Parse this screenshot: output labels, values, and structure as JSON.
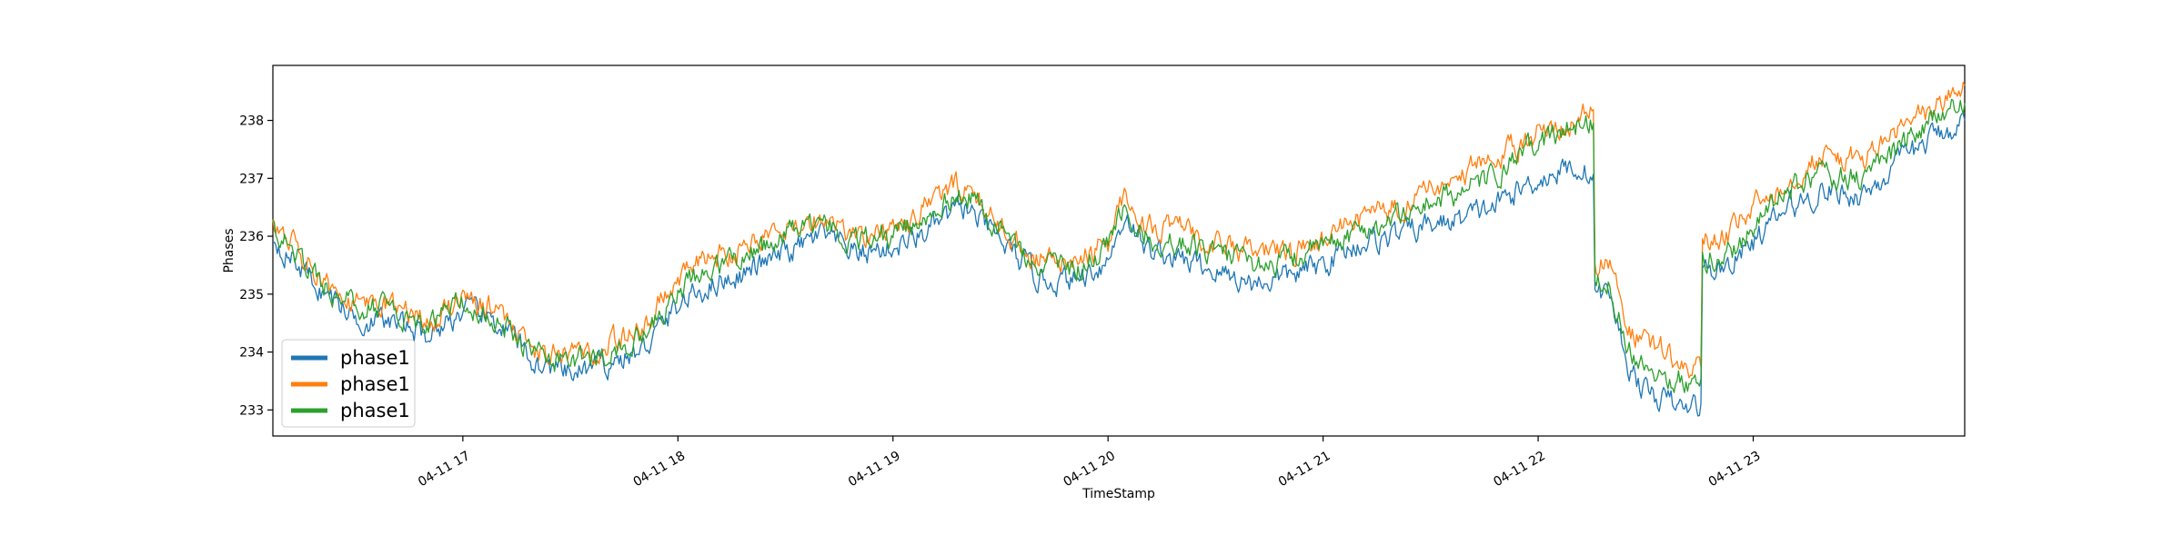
{
  "chart_data": {
    "type": "line",
    "title": "",
    "xlabel": "TimeStamp",
    "ylabel": "Phases",
    "x_tick_labels": [
      "04-11 17",
      "04-11 18",
      "04-11 19",
      "04-11 20",
      "04-11 21",
      "04-11 22",
      "04-11 23"
    ],
    "y_tick_labels": [
      "233",
      "234",
      "235",
      "236",
      "237",
      "238"
    ],
    "xlim": [
      "04-11 16:07",
      "04-11 23:59"
    ],
    "ylim": [
      232.55,
      238.95
    ],
    "grid": false,
    "legend_position": "lower-left",
    "x": [
      "04-11 16:07",
      "04-11 16:20",
      "04-11 16:30",
      "04-11 16:40",
      "04-11 16:50",
      "04-11 17:00",
      "04-11 17:10",
      "04-11 17:20",
      "04-11 17:30",
      "04-11 17:40",
      "04-11 17:50",
      "04-11 18:00",
      "04-11 18:10",
      "04-11 18:20",
      "04-11 18:30",
      "04-11 18:40",
      "04-11 18:50",
      "04-11 19:00",
      "04-11 19:10",
      "04-11 19:20",
      "04-11 19:30",
      "04-11 19:40",
      "04-11 19:50",
      "04-11 20:00",
      "04-11 20:05",
      "04-11 20:10",
      "04-11 20:20",
      "04-11 20:30",
      "04-11 20:40",
      "04-11 20:50",
      "04-11 21:00",
      "04-11 21:10",
      "04-11 21:20",
      "04-11 21:30",
      "04-11 21:40",
      "04-11 21:50",
      "04-11 22:00",
      "04-11 22:10",
      "04-11 22:15",
      "04-11 22:20",
      "04-11 22:25",
      "04-11 22:30",
      "04-11 22:35",
      "04-11 22:40",
      "04-11 22:45",
      "04-11 22:50",
      "04-11 22:55",
      "04-11 23:00",
      "04-11 23:10",
      "04-11 23:20",
      "04-11 23:30",
      "04-11 23:40",
      "04-11 23:50",
      "04-11 23:59"
    ],
    "series": [
      {
        "name": "phase1",
        "color": "#1f77b4",
        "values": [
          236.0,
          235.1,
          234.6,
          234.5,
          234.3,
          234.7,
          234.5,
          233.8,
          233.6,
          233.8,
          234.0,
          234.8,
          235.2,
          235.4,
          235.7,
          236.0,
          235.7,
          235.8,
          236.1,
          236.5,
          235.9,
          235.3,
          235.2,
          235.6,
          236.4,
          235.8,
          235.6,
          235.4,
          235.2,
          235.3,
          235.5,
          235.9,
          236.0,
          236.2,
          236.3,
          236.6,
          237.0,
          237.2,
          237.1,
          235.0,
          233.8,
          233.3,
          233.2,
          233.0,
          233.1,
          235.4,
          235.6,
          235.9,
          236.5,
          236.8,
          236.7,
          237.2,
          237.7,
          238.0
        ]
      },
      {
        "name": "phase1",
        "color": "#ff7f0e",
        "values": [
          236.3,
          235.3,
          234.9,
          234.8,
          234.5,
          234.9,
          234.7,
          234.0,
          233.9,
          234.1,
          234.4,
          235.3,
          235.6,
          235.9,
          236.2,
          236.3,
          236.0,
          236.1,
          236.6,
          236.9,
          236.2,
          235.6,
          235.5,
          235.9,
          236.8,
          236.2,
          236.1,
          235.9,
          235.7,
          235.7,
          235.9,
          236.3,
          236.5,
          236.8,
          237.1,
          237.4,
          237.8,
          238.0,
          238.2,
          235.5,
          234.4,
          234.1,
          234.0,
          233.8,
          233.7,
          235.9,
          236.1,
          236.5,
          237.0,
          237.4,
          237.3,
          237.8,
          238.2,
          238.6
        ]
      },
      {
        "name": "phase1",
        "color": "#2ca02c",
        "values": [
          236.2,
          235.2,
          234.8,
          234.7,
          234.4,
          234.8,
          234.6,
          233.9,
          233.8,
          234.0,
          234.2,
          235.1,
          235.4,
          235.7,
          236.0,
          236.2,
          235.9,
          236.0,
          236.4,
          236.8,
          236.1,
          235.5,
          235.4,
          235.8,
          236.6,
          236.0,
          235.9,
          235.7,
          235.5,
          235.6,
          235.8,
          236.1,
          236.3,
          236.6,
          236.8,
          237.1,
          237.6,
          237.9,
          238.0,
          235.2,
          234.1,
          233.8,
          233.6,
          233.5,
          233.4,
          235.6,
          235.8,
          236.2,
          236.8,
          237.1,
          237.0,
          237.5,
          238.0,
          238.3
        ]
      }
    ]
  }
}
